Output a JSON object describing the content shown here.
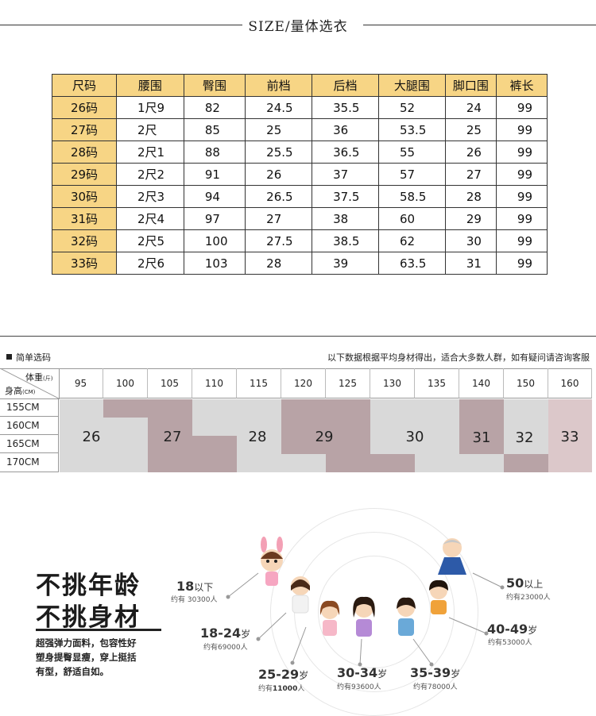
{
  "header": {
    "title": "SIZE/量体选衣"
  },
  "size_table": {
    "columns": [
      "尺码",
      "腰围",
      "臀围",
      "前档",
      "后档",
      "大腿围",
      "脚口围",
      "裤长"
    ],
    "rows": [
      [
        "26码",
        "1尺9",
        "82",
        "24.5",
        "35.5",
        "52",
        "24",
        "99"
      ],
      [
        "27码",
        "2尺",
        "85",
        "25",
        "36",
        "53.5",
        "25",
        "99"
      ],
      [
        "28码",
        "2尺1",
        "88",
        "25.5",
        "36.5",
        "55",
        "26",
        "99"
      ],
      [
        "29码",
        "2尺2",
        "91",
        "26",
        "37",
        "57",
        "27",
        "99"
      ],
      [
        "30码",
        "2尺3",
        "94",
        "26.5",
        "37.5",
        "58.5",
        "28",
        "99"
      ],
      [
        "31码",
        "2尺4",
        "97",
        "27",
        "38",
        "60",
        "29",
        "99"
      ],
      [
        "32码",
        "2尺5",
        "100",
        "27.5",
        "38.5",
        "62",
        "30",
        "99"
      ],
      [
        "33码",
        "2尺6",
        "103",
        "28",
        "39",
        "63.5",
        "31",
        "99"
      ]
    ]
  },
  "simple_chart": {
    "label": "简单选码",
    "note": "以下数据根据平均身材得出，适合大多数人群，如有疑问请咨询客服",
    "weight_label": "体重",
    "weight_unit": "(斤)",
    "height_label": "身高",
    "height_unit": "(CM)",
    "weights": [
      "95",
      "100",
      "105",
      "110",
      "115",
      "120",
      "125",
      "130",
      "135",
      "140",
      "150",
      "160"
    ],
    "heights": [
      "155CM",
      "160CM",
      "165CM",
      "170CM"
    ],
    "sizes": [
      "26",
      "27",
      "28",
      "29",
      "30",
      "31",
      "32",
      "33"
    ]
  },
  "marketing": {
    "headline1": "不挑年龄",
    "headline2": "不挑身材",
    "slogan": [
      "超强弹力面料，包容性好",
      "塑身提臀显瘦，穿上挺括",
      "有型，舒适自如。"
    ],
    "groups": [
      {
        "age": "18",
        "suffix": "以下",
        "count": "约有  30300人"
      },
      {
        "age": "18-24",
        "suffix": "岁",
        "count": "约有69000人"
      },
      {
        "age": "25-29",
        "suffix": "岁",
        "count_prefix": "约有",
        "count_bold": "11000",
        "count_suffix": "人"
      },
      {
        "age": "30-34",
        "suffix": "岁",
        "count": "约有93600人"
      },
      {
        "age": "35-39",
        "suffix": "岁",
        "count": "约有78000人"
      },
      {
        "age": "40-49",
        "suffix": "岁",
        "count": "约有53000人"
      },
      {
        "age": "50",
        "suffix": "以上",
        "count": "约有23000人"
      }
    ]
  },
  "colors": {
    "table_header": "#f7d585",
    "chart_gray": "#d9d9d9",
    "chart_mauve": "#b8a3a6",
    "chart_light_mauve": "#dcc8ca"
  }
}
